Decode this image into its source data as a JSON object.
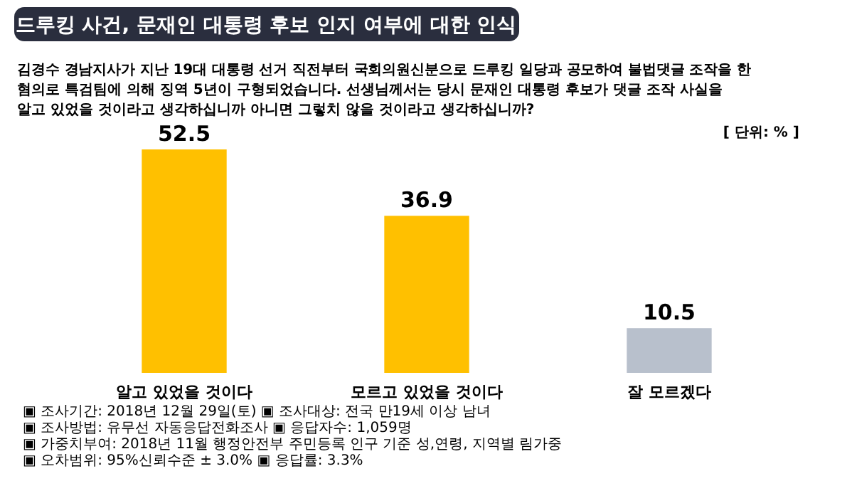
{
  "chart_data": {
    "type": "bar",
    "title": "드루킹 사건, 문재인 대통령 후보 인지 여부에 대한 인식",
    "subtitle": "김경수 경남지사가 지난 19대 대통령 선거 직전부터 국회의원신분으로 드루킹 일당과 공모하여 불법댓글 조작을 한\n혐의로 특검팀에 의해 징역 5년이 구형되었습니다. 선생님께서는 당시 문재인 대통령 후보가 댓글 조작 사실을\n알고 있었을 것이라고 생각하십니까 아니면 그렇치 않을 것이라고 생각하십니까?",
    "categories": [
      "알고 있었을 것이다",
      "모르고 있었을 것이다",
      "잘 모르겠다"
    ],
    "values": [
      52.5,
      36.9,
      10.5
    ],
    "colors": [
      "#ffc000",
      "#ffc000",
      "#b8c0cc"
    ],
    "data_labels": true,
    "annotations": [
      "[ 단위: % ]",
      "▣ 조사기간: 2018년 12월 29일(토) ▣ 조사대상: 전국 만19세 이상 남녀",
      "▣ 조사방법: 유무선 자동응답전화조사 ▣ 응답자수: 1,059명 ▣ 가중치부여: 2018년 11월 행정안전부 주민등록 인구 기준 성,연령, 지역별 림가중",
      "▣ 오차범위: 95%신뢰수준 ± 3.0% ▣ 응답률: 3.3%"
    ]
  }
}
